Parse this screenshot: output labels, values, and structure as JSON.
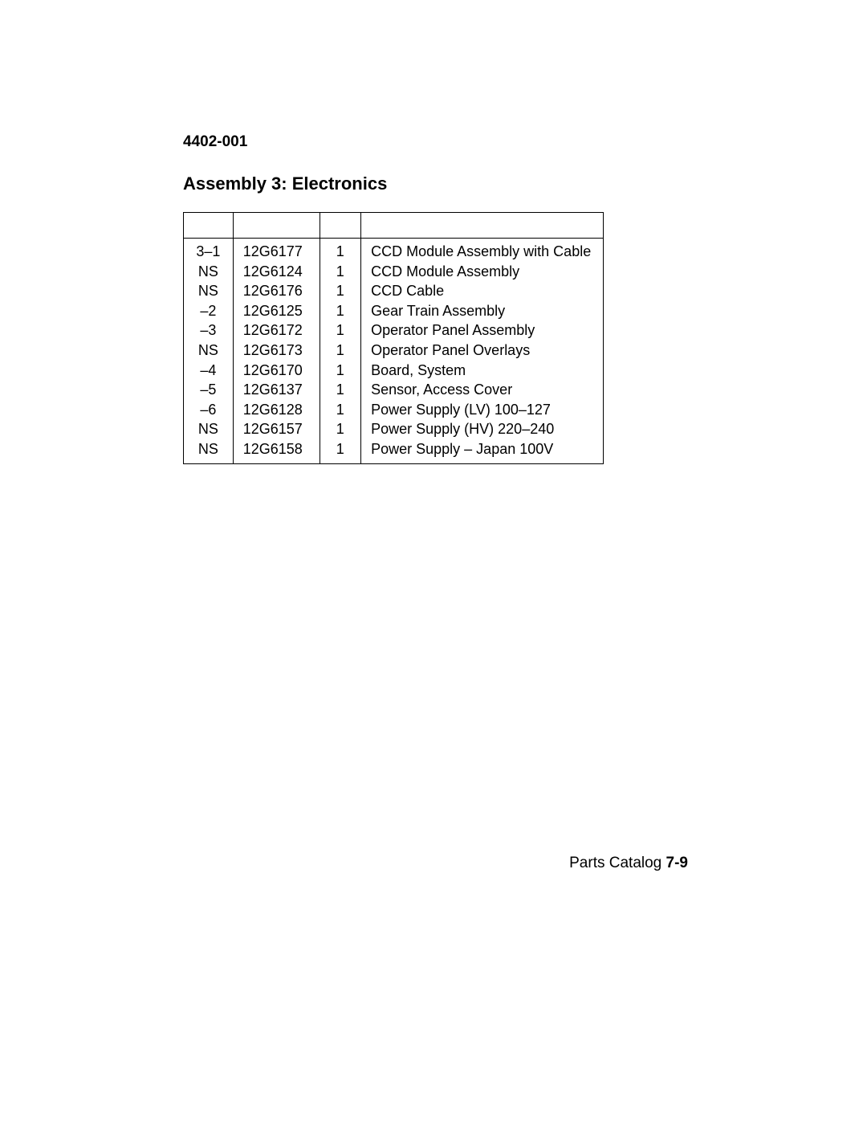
{
  "doc_number": "4402-001",
  "section_title": "Assembly 3: Electronics",
  "table": {
    "columns": {
      "col1_width": 62,
      "col2_width": 108,
      "col3_width": 52,
      "col4_width": 302
    },
    "font_size": 18,
    "border_color": "#000000",
    "text_color": "#000000",
    "rows": [
      {
        "idx": "3–1",
        "part": "12G6177",
        "qty": "1",
        "desc": "CCD Module Assembly with Cable"
      },
      {
        "idx": "NS",
        "part": "12G6124",
        "qty": "1",
        "desc": "CCD Module Assembly"
      },
      {
        "idx": "NS",
        "part": "12G6176",
        "qty": "1",
        "desc": "CCD Cable"
      },
      {
        "idx": "–2",
        "part": "12G6125",
        "qty": "1",
        "desc": "Gear Train Assembly"
      },
      {
        "idx": "–3",
        "part": "12G6172",
        "qty": "1",
        "desc": "Operator Panel Assembly"
      },
      {
        "idx": "NS",
        "part": "12G6173",
        "qty": "1",
        "desc": "Operator Panel Overlays"
      },
      {
        "idx": "–4",
        "part": "12G6170",
        "qty": "1",
        "desc": "Board, System"
      },
      {
        "idx": "–5",
        "part": "12G6137",
        "qty": "1",
        "desc": "Sensor, Access Cover"
      },
      {
        "idx": "–6",
        "part": "12G6128",
        "qty": "1",
        "desc": "Power Supply (LV) 100–127"
      },
      {
        "idx": "NS",
        "part": "12G6157",
        "qty": "1",
        "desc": "Power Supply (HV) 220–240"
      },
      {
        "idx": "NS",
        "part": "12G6158",
        "qty": "1",
        "desc": "Power Supply – Japan 100V"
      }
    ]
  },
  "footer": {
    "label": "Parts Catalog",
    "page": "7-9"
  },
  "styling": {
    "page_background": "#ffffff",
    "heading_font_size": 22,
    "docnum_font_size": 19,
    "footer_font_size": 19
  }
}
